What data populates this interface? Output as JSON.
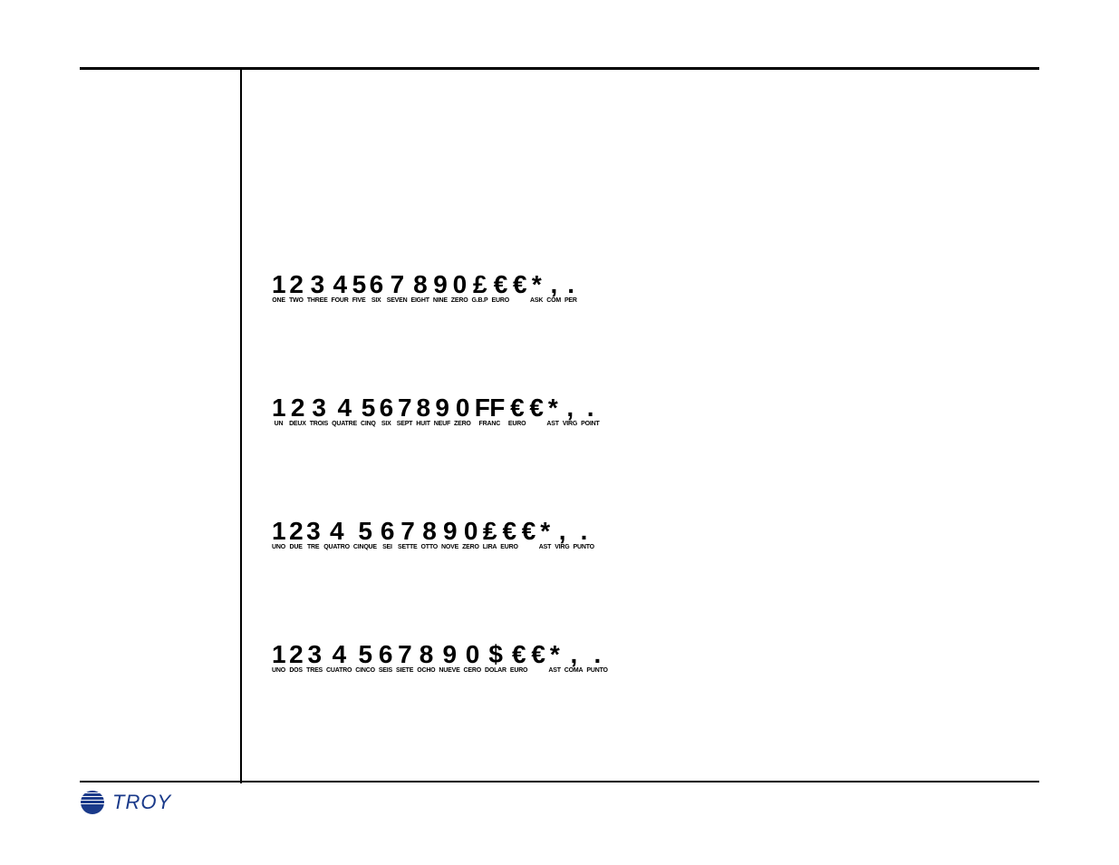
{
  "rows": [
    {
      "cells": [
        {
          "g": "1",
          "s": "ONE"
        },
        {
          "g": "2",
          "s": "TWO"
        },
        {
          "g": "3",
          "s": "THREE"
        },
        {
          "g": "4",
          "s": "FOUR"
        },
        {
          "g": "5",
          "s": "FIVE"
        },
        {
          "g": "6",
          "s": "SIX"
        },
        {
          "g": "7",
          "s": "SEVEN"
        },
        {
          "g": "8",
          "s": "EIGHT"
        },
        {
          "g": "9",
          "s": "NINE"
        },
        {
          "g": "0",
          "s": "ZERO"
        },
        {
          "g": "£",
          "s": "G.B.P"
        },
        {
          "g": "€",
          "s": "EURO"
        },
        {
          "g": "€",
          "s": ""
        },
        {
          "g": "*",
          "s": "ASK"
        },
        {
          "g": ",",
          "s": "COM"
        },
        {
          "g": ".",
          "s": "PER"
        }
      ]
    },
    {
      "cells": [
        {
          "g": "1",
          "s": "UN"
        },
        {
          "g": "2",
          "s": "DEUX"
        },
        {
          "g": "3",
          "s": "TROIS"
        },
        {
          "g": "4",
          "s": "QUATRE"
        },
        {
          "g": "5",
          "s": "CINQ"
        },
        {
          "g": "6",
          "s": "SIX"
        },
        {
          "g": "7",
          "s": "SEPT"
        },
        {
          "g": "8",
          "s": "HUIT"
        },
        {
          "g": "9",
          "s": "NEUF"
        },
        {
          "g": "0",
          "s": "ZERO"
        },
        {
          "g": "FF",
          "s": "FRANC"
        },
        {
          "g": "€",
          "s": "EURO"
        },
        {
          "g": "€",
          "s": ""
        },
        {
          "g": "*",
          "s": "AST"
        },
        {
          "g": ",",
          "s": "VIRG"
        },
        {
          "g": ".",
          "s": "POINT"
        }
      ]
    },
    {
      "cells": [
        {
          "g": "1",
          "s": "UNO"
        },
        {
          "g": "2",
          "s": "DUE"
        },
        {
          "g": "3",
          "s": "TRE"
        },
        {
          "g": "4",
          "s": "QUATRO"
        },
        {
          "g": "5",
          "s": "CINQUE"
        },
        {
          "g": "6",
          "s": "SEI"
        },
        {
          "g": "7",
          "s": "SETTE"
        },
        {
          "g": "8",
          "s": "OTTO"
        },
        {
          "g": "9",
          "s": "NOVE"
        },
        {
          "g": "0",
          "s": "ZERO"
        },
        {
          "g": "₤",
          "s": "LIRA"
        },
        {
          "g": "€",
          "s": "EURO"
        },
        {
          "g": "€",
          "s": ""
        },
        {
          "g": "*",
          "s": "AST"
        },
        {
          "g": ",",
          "s": "VIRG"
        },
        {
          "g": ".",
          "s": "PUNTO"
        }
      ]
    },
    {
      "cells": [
        {
          "g": "1",
          "s": "UNO"
        },
        {
          "g": "2",
          "s": "DOS"
        },
        {
          "g": "3",
          "s": "TRES"
        },
        {
          "g": "4",
          "s": "CUATRO"
        },
        {
          "g": "5",
          "s": "CINCO"
        },
        {
          "g": "6",
          "s": "SEIS"
        },
        {
          "g": "7",
          "s": "SIETE"
        },
        {
          "g": "8",
          "s": "OCHO"
        },
        {
          "g": "9",
          "s": "NUEVE"
        },
        {
          "g": "0",
          "s": "CERO"
        },
        {
          "g": "$",
          "s": "DOLAR"
        },
        {
          "g": "€",
          "s": "EURO"
        },
        {
          "g": "€",
          "s": ""
        },
        {
          "g": "*",
          "s": "AST"
        },
        {
          "g": ",",
          "s": "COMA"
        },
        {
          "g": ".",
          "s": "PUNTO"
        }
      ]
    }
  ],
  "footer": {
    "logo_text": "TROY",
    "logo_color": "#1a3a8a"
  }
}
